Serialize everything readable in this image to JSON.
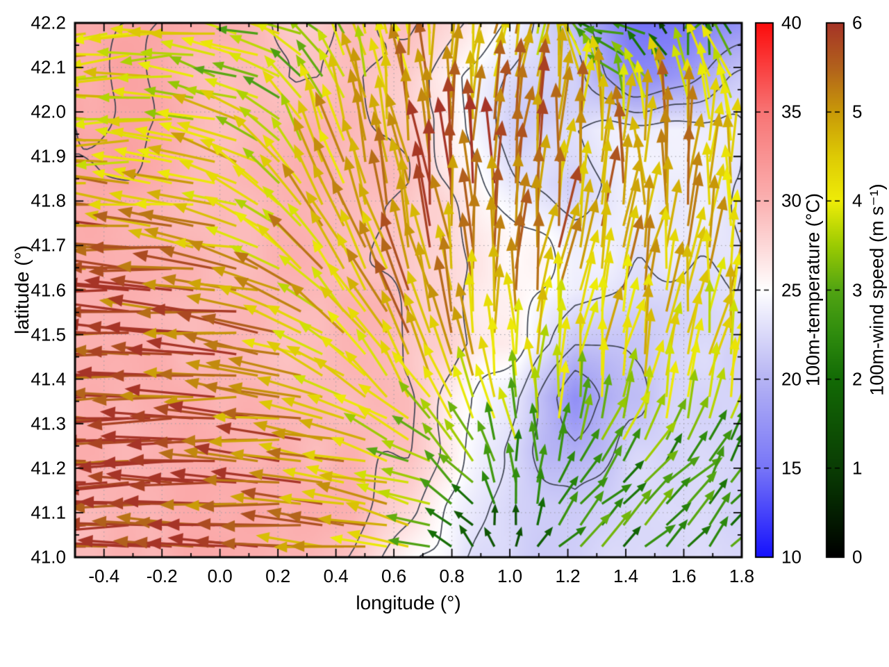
{
  "chart_data": {
    "type": "heatmap+quiver vector-field weather map",
    "title": "",
    "xlabel": "longitude (°)",
    "ylabel": "latitude (°)",
    "xlim": [
      -0.5,
      1.8
    ],
    "ylim": [
      41.0,
      42.2
    ],
    "xticks": [
      "-0.4",
      "-0.2",
      "0.0",
      "0.2",
      "0.4",
      "0.6",
      "0.8",
      "1.0",
      "1.2",
      "1.4",
      "1.6",
      "1.8"
    ],
    "yticks": [
      "41.0",
      "41.1",
      "41.2",
      "41.3",
      "41.4",
      "41.5",
      "41.6",
      "41.7",
      "41.8",
      "41.9",
      "42.0",
      "42.1",
      "42.2"
    ],
    "x_minor_step": 0.1,
    "y_minor_step": 0.05,
    "grid": "dotted at major ticks",
    "legend_position": "two vertical colorbars right of plot",
    "colorbars": [
      {
        "label": "100m-temperature (°C)",
        "min": 10,
        "max": 40,
        "ticks": [
          "10",
          "15",
          "20",
          "25",
          "30",
          "35",
          "40"
        ],
        "stops": [
          [
            10,
            "#1612fd"
          ],
          [
            15,
            "#7876f8"
          ],
          [
            20,
            "#b6b4f4"
          ],
          [
            25,
            "#ffffff"
          ],
          [
            30,
            "#fbb2b2"
          ],
          [
            35,
            "#f87575"
          ],
          [
            40,
            "#fc0d0d"
          ]
        ]
      },
      {
        "label": "100m-wind speed (m s⁻¹)",
        "min": 0,
        "max": 6,
        "ticks": [
          "0",
          "1",
          "2",
          "3",
          "4",
          "5",
          "6"
        ],
        "stops": [
          [
            0,
            "#000000"
          ],
          [
            0.7,
            "#062c02"
          ],
          [
            1,
            "#0a3d04"
          ],
          [
            1.5,
            "#0f5405"
          ],
          [
            2,
            "#136b06"
          ],
          [
            2.5,
            "#2f8c0e"
          ],
          [
            3,
            "#52a513"
          ],
          [
            3.5,
            "#9ccb02"
          ],
          [
            4,
            "#efed08"
          ],
          [
            4.5,
            "#decb05"
          ],
          [
            5,
            "#c99a08"
          ],
          [
            5.5,
            "#b2621c"
          ],
          [
            6,
            "#a63427"
          ]
        ]
      }
    ],
    "temperature_field": {
      "units": "°C",
      "lon": [
        -0.5,
        -0.308,
        -0.117,
        0.075,
        0.267,
        0.458,
        0.65,
        0.842,
        1.033,
        1.225,
        1.417,
        1.608,
        1.8
      ],
      "lat": [
        42.2,
        42.08,
        41.96,
        41.84,
        41.72,
        41.6,
        41.48,
        41.36,
        41.24,
        41.12,
        41.0
      ],
      "values": [
        [
          30,
          30,
          30,
          29.5,
          28.5,
          29,
          28.5,
          27,
          24.5,
          21,
          15.5,
          14.5,
          17
        ],
        [
          30,
          30,
          30,
          29.5,
          28,
          28.5,
          28,
          25,
          23,
          22.5,
          17,
          18,
          21
        ],
        [
          30.5,
          30,
          30,
          29.5,
          29,
          29,
          28.5,
          25.5,
          22.5,
          24,
          24.5,
          24,
          23
        ],
        [
          30.5,
          30.5,
          30,
          30,
          29.5,
          29.5,
          29,
          26.5,
          23,
          21.5,
          23.5,
          23,
          22.5
        ],
        [
          31,
          30.5,
          30,
          30,
          30,
          29.5,
          29,
          27,
          25,
          23,
          22.5,
          22.5,
          22.5
        ],
        [
          31,
          31,
          30.5,
          30,
          30,
          29.5,
          29,
          27.5,
          25.5,
          23.5,
          22.5,
          22,
          22.5
        ],
        [
          31,
          31,
          30.5,
          30.5,
          30,
          29.5,
          29,
          28,
          26,
          21.5,
          21.5,
          22,
          22
        ],
        [
          31,
          31,
          31,
          30.5,
          30,
          29.5,
          29,
          26,
          23,
          17.5,
          21,
          22,
          22
        ],
        [
          31,
          30.5,
          31,
          30.5,
          30,
          29.5,
          28.5,
          25,
          22,
          19,
          21.5,
          22,
          22
        ],
        [
          30.5,
          30.5,
          31,
          30.5,
          31,
          29.5,
          27,
          24,
          22,
          21.5,
          22,
          22,
          22.5
        ],
        [
          30,
          30.5,
          30.5,
          30,
          30,
          29,
          26,
          23.5,
          22,
          22,
          22,
          22.5,
          22
        ]
      ]
    },
    "wind_field": {
      "units": "m/s, u=east v=north",
      "lon": [
        -0.5,
        -0.308,
        -0.117,
        0.075,
        0.267,
        0.458,
        0.65,
        0.842,
        1.033,
        1.225,
        1.417,
        1.608,
        1.8
      ],
      "lat": [
        42.2,
        42.08,
        41.96,
        41.84,
        41.72,
        41.6,
        41.48,
        41.36,
        41.24,
        41.12,
        41.0
      ],
      "u": [
        [
          -4.2,
          -4.0,
          -4.2,
          -3.5,
          -3.4,
          -1.5,
          -0.5,
          0.5,
          1.0,
          -1.0,
          -3.0,
          2.5,
          -2.0
        ],
        [
          -4.5,
          -4.2,
          -4.0,
          -3.5,
          -2.5,
          -1.5,
          -0.5,
          0.5,
          1.0,
          -0.5,
          -2.5,
          -1.0,
          -1.5
        ],
        [
          -4.5,
          -4.2,
          -4.0,
          -3.8,
          -2.0,
          -1.0,
          -0.5,
          0.0,
          0.5,
          1.0,
          0.5,
          0.0,
          -0.5
        ],
        [
          -5.0,
          -4.5,
          -4.5,
          -4.0,
          -2.5,
          -1.5,
          -1.0,
          -0.5,
          0.5,
          0.2,
          -0.5,
          0.5,
          0.0
        ],
        [
          -5.5,
          -5.5,
          -5.0,
          -4.5,
          -3.0,
          -2.0,
          -1.0,
          -0.5,
          0.5,
          1.0,
          1.0,
          0.5,
          0.5
        ],
        [
          -5.8,
          -5.8,
          -5.5,
          -5.0,
          -4.0,
          -2.5,
          -1.5,
          -0.5,
          0.5,
          1.0,
          1.0,
          0.5,
          0.5
        ],
        [
          -6.0,
          -5.8,
          -5.8,
          -5.5,
          -4.5,
          -3.0,
          -2.0,
          -1.0,
          0.0,
          0.5,
          1.0,
          1.0,
          0.5
        ],
        [
          -6.0,
          -6.0,
          -5.8,
          -5.5,
          -5.0,
          -3.5,
          -2.5,
          -1.5,
          -0.5,
          0.0,
          0.5,
          1.0,
          1.0
        ],
        [
          -6.0,
          -6.0,
          -5.8,
          -5.8,
          -5.5,
          -4.5,
          -3.5,
          -2.0,
          -0.5,
          1.2,
          1.5,
          1.6,
          1.5
        ],
        [
          -6.0,
          -6.0,
          -6.0,
          -5.8,
          -5.5,
          -5.0,
          -4.0,
          -2.0,
          0.3,
          1.5,
          1.6,
          1.7,
          1.8
        ],
        [
          -5.8,
          -6.0,
          -6.0,
          -5.8,
          -5.5,
          -5.0,
          -4.0,
          -1.5,
          0.5,
          1.5,
          1.6,
          1.7,
          1.8
        ]
      ],
      "v": [
        [
          -0.3,
          -0.5,
          0.0,
          0.8,
          1.2,
          3.5,
          4.2,
          4.5,
          4.8,
          2.0,
          0.5,
          1.0,
          1.0
        ],
        [
          0.0,
          -0.5,
          0.5,
          1.0,
          2.0,
          3.5,
          4.5,
          4.8,
          4.5,
          4.0,
          1.5,
          3.5,
          3.0
        ],
        [
          0.5,
          0.0,
          0.5,
          1.5,
          3.0,
          4.5,
          5.0,
          5.5,
          5.5,
          5.0,
          5.0,
          5.0,
          4.5
        ],
        [
          0.5,
          0.5,
          0.5,
          1.5,
          3.5,
          4.5,
          5.2,
          5.6,
          5.4,
          5.0,
          5.0,
          5.0,
          4.5
        ],
        [
          0.3,
          0.3,
          0.5,
          1.0,
          3.0,
          4.5,
          5.0,
          5.5,
          5.2,
          5.0,
          5.0,
          4.8,
          4.5
        ],
        [
          0.2,
          0.2,
          0.3,
          0.8,
          2.0,
          4.0,
          4.8,
          5.2,
          4.8,
          4.8,
          4.6,
          4.5,
          4.3
        ],
        [
          0.0,
          0.2,
          0.2,
          0.5,
          1.5,
          3.0,
          4.5,
          4.8,
          4.2,
          4.2,
          4.4,
          4.3,
          4.2
        ],
        [
          0.0,
          0.0,
          0.2,
          0.3,
          1.0,
          2.0,
          3.5,
          4.0,
          3.8,
          3.8,
          4.0,
          4.0,
          3.8
        ],
        [
          0.0,
          0.0,
          0.0,
          0.2,
          0.5,
          1.0,
          1.5,
          2.5,
          3.0,
          2.6,
          2.4,
          2.4,
          2.4
        ],
        [
          0.0,
          0.0,
          0.0,
          0.0,
          0.3,
          0.5,
          1.0,
          1.5,
          2.0,
          2.0,
          2.0,
          2.0,
          2.0
        ],
        [
          0.0,
          0.0,
          0.0,
          0.0,
          0.2,
          0.3,
          0.8,
          1.5,
          1.8,
          1.9,
          1.9,
          1.9,
          2.0
        ]
      ],
      "arrow_grid_cols": 31,
      "arrow_grid_rows": 25
    },
    "contour_levels_degC": [
      19,
      21,
      23,
      25,
      27,
      29,
      31
    ],
    "colors": {
      "contour": "#3c4250",
      "grid_dots": "#9a9aa2",
      "axis": "#000000",
      "plot_background": "#ffffff"
    }
  }
}
